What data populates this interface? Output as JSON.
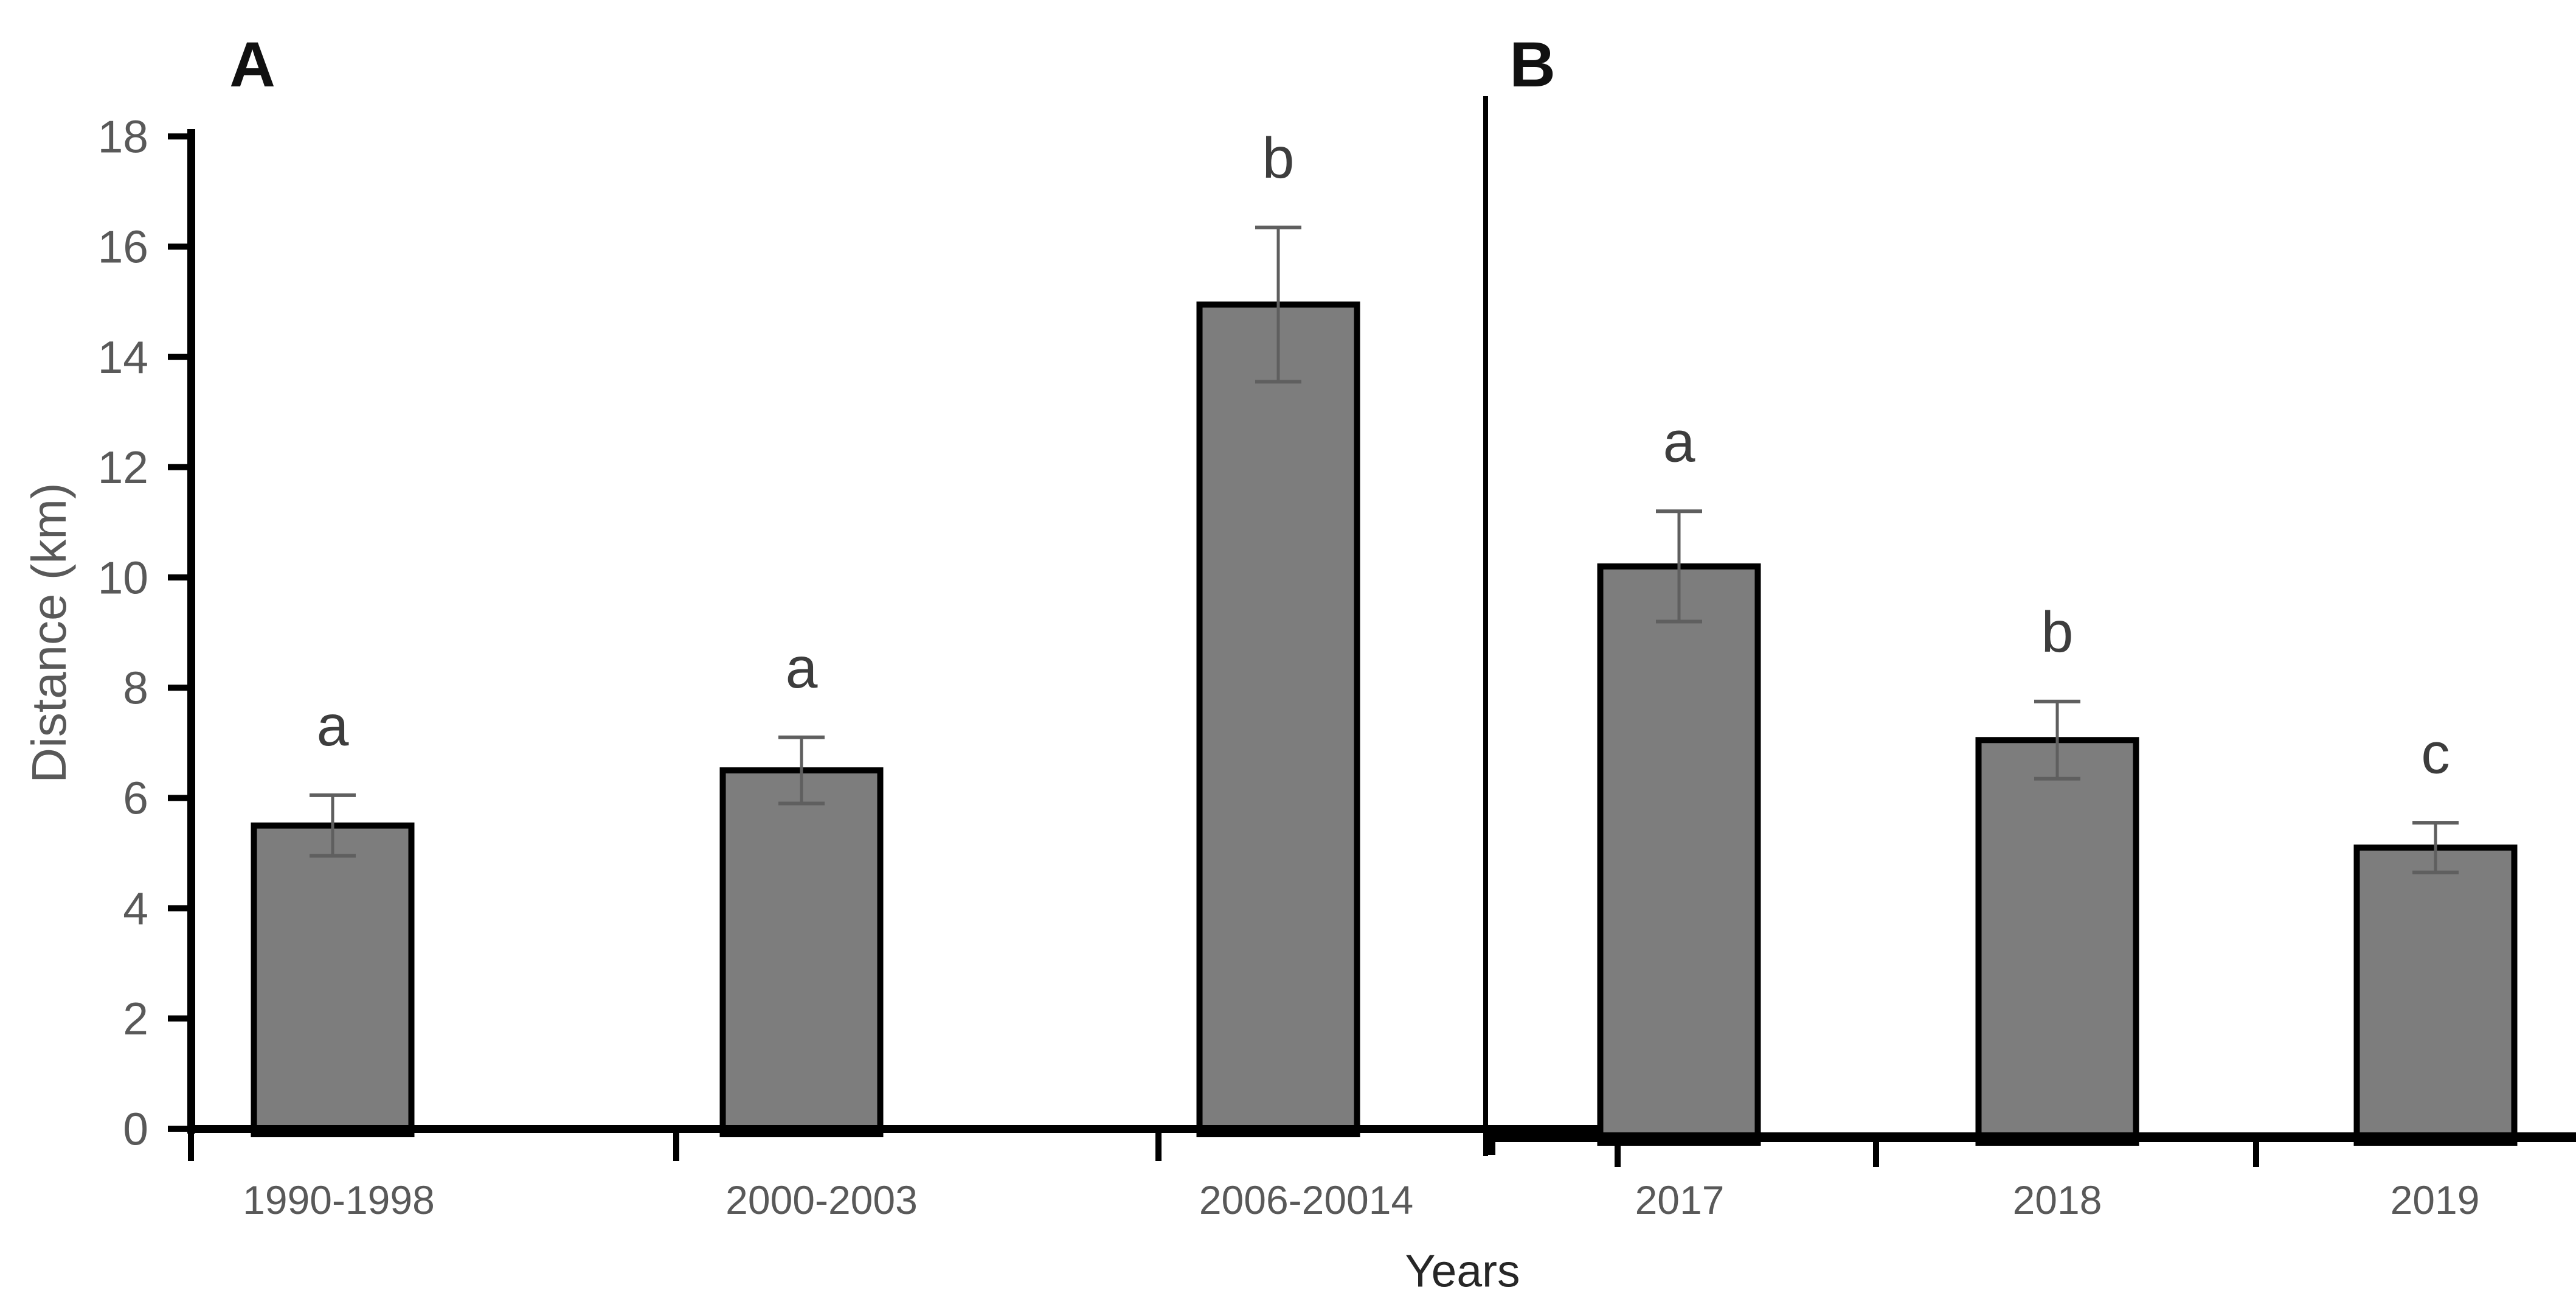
{
  "page": {
    "background": "#ffffff"
  },
  "chart_data": {
    "type": "bar",
    "title": "",
    "xlabel": "Years",
    "ylabel": "Distance (km)",
    "ylim": [
      0,
      18
    ],
    "yticks": [
      0,
      2,
      4,
      6,
      8,
      10,
      12,
      14,
      16,
      18
    ],
    "grid": false,
    "legend": null,
    "panels": [
      {
        "label": "A",
        "categories": [
          "1990-1998",
          "2000-2003",
          "2006-20014"
        ],
        "values": [
          5.5,
          6.5,
          14.95
        ],
        "errors": [
          0.55,
          0.6,
          1.4
        ],
        "sig_letters": [
          "a",
          "a",
          "b"
        ]
      },
      {
        "label": "B",
        "categories": [
          "2017",
          "2018",
          "2019"
        ],
        "values": [
          10.2,
          7.05,
          5.1
        ],
        "errors": [
          1.0,
          0.7,
          0.45
        ],
        "sig_letters": [
          "a",
          "b",
          "c"
        ]
      }
    ],
    "colors": {
      "bar_fill": "#7d7d7d",
      "bar_edge": "#000000",
      "error_bar": "#5f5f5f",
      "axis": "#000000",
      "tick_label": "#595959",
      "axis_label": "#595959",
      "sig_letter": "#3d3d3d",
      "panel_letter": "#111111",
      "xlabel_color": "#262626"
    }
  }
}
